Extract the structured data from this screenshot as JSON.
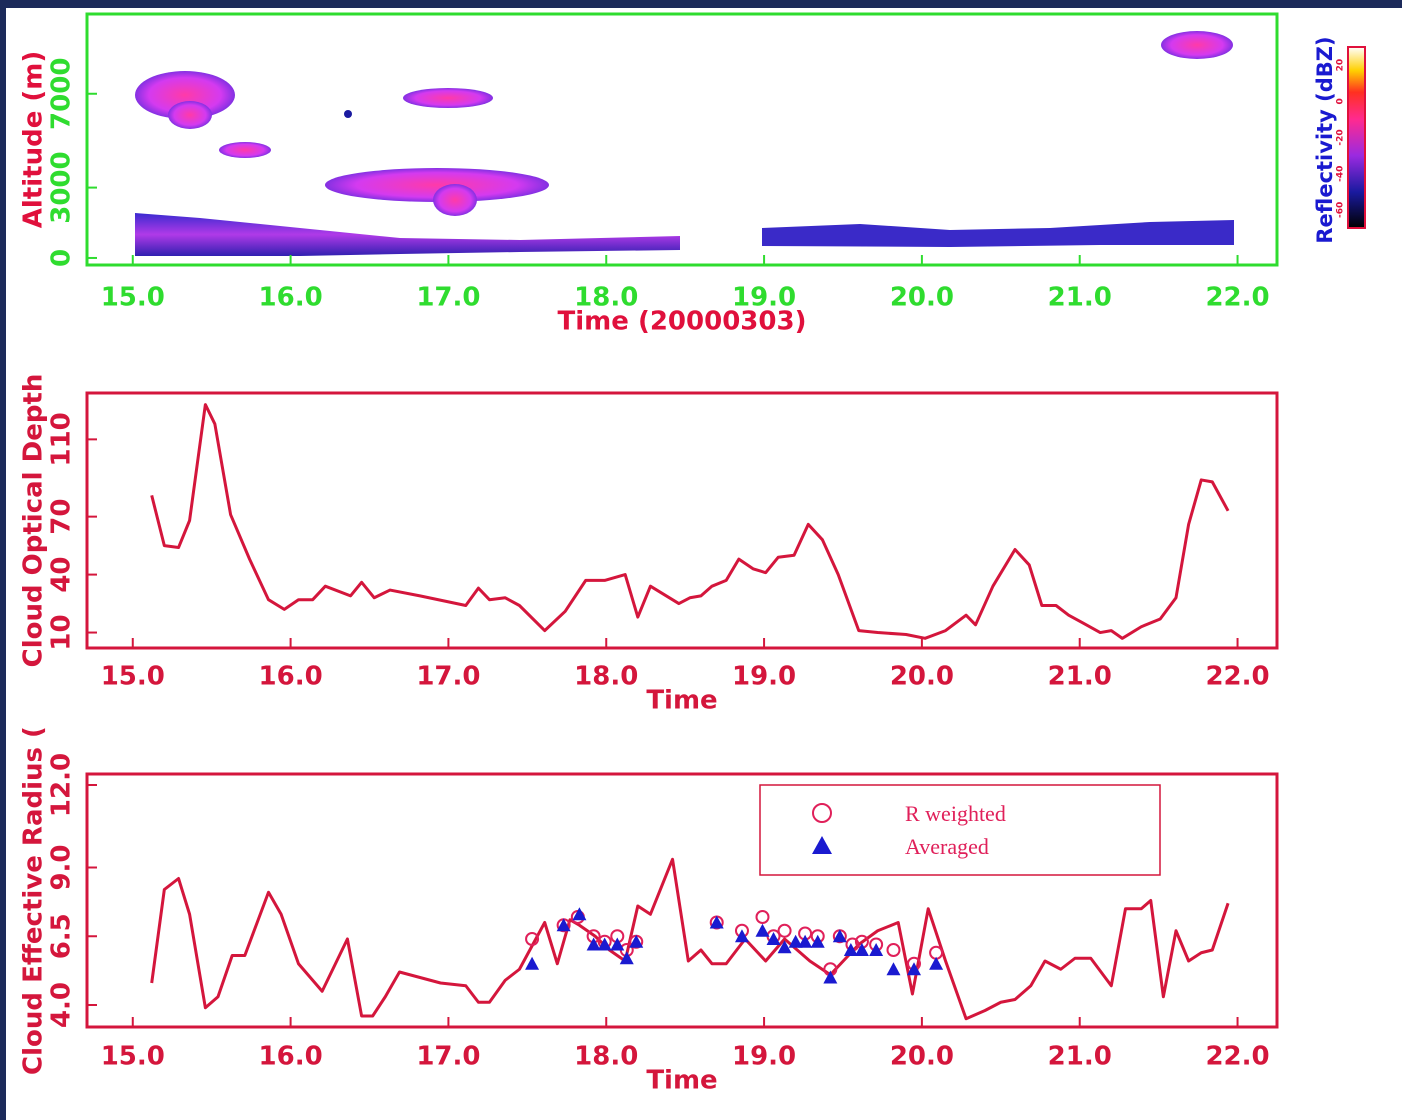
{
  "chart_data": [
    {
      "type": "heatmap",
      "xlabel": "Time (20000303)",
      "ylabel": "Altitude (m)",
      "xlim": [
        14.71,
        22.25
      ],
      "xticks": [
        {
          "value": 15,
          "label": "15.0"
        },
        {
          "value": 16,
          "label": "16.0"
        },
        {
          "value": 17,
          "label": "17.0"
        },
        {
          "value": 18,
          "label": "18.0"
        },
        {
          "value": 19,
          "label": "19.0"
        },
        {
          "value": 20,
          "label": "20.0"
        },
        {
          "value": 21,
          "label": "21.0"
        },
        {
          "value": 22,
          "label": "22.0"
        }
      ],
      "ylim": [
        -300,
        10400
      ],
      "yticks": [
        0,
        3000,
        7000
      ],
      "axis_color": "#2fdc2f",
      "tick_color": "#2fdc2f",
      "label_color": "#e0103c",
      "colorbar": {
        "label": "Reflectivity (dBZ)",
        "lim": [
          -70,
          30
        ],
        "ticks": [
          -60,
          -40,
          -20,
          0,
          20
        ]
      }
    },
    {
      "type": "line",
      "xlabel": "Time",
      "ylabel": "Cloud Optical Depth",
      "xlim": [
        14.71,
        22.25
      ],
      "xticks": [
        {
          "value": 15,
          "label": "15.0"
        },
        {
          "value": 16,
          "label": "16.0"
        },
        {
          "value": 17,
          "label": "17.0"
        },
        {
          "value": 18,
          "label": "18.0"
        },
        {
          "value": 19,
          "label": "19.0"
        },
        {
          "value": 20,
          "label": "20.0"
        },
        {
          "value": 21,
          "label": "21.0"
        },
        {
          "value": 22,
          "label": "22.0"
        }
      ],
      "ylim": [
        2,
        134
      ],
      "yticks": [
        10,
        40,
        70,
        110
      ],
      "axis_color": "#d4163c",
      "tick_color": "#d4163c",
      "label_color": "#d4163c",
      "series": [
        {
          "color": "#d4163c",
          "x": [
            15.12,
            15.2,
            15.29,
            15.36,
            15.46,
            15.52,
            15.62,
            15.74,
            15.86,
            15.96,
            16.05,
            16.14,
            16.22,
            16.38,
            16.45,
            16.53,
            16.63,
            16.82,
            17.11,
            17.19,
            17.26,
            17.36,
            17.45,
            17.61,
            17.74,
            17.87,
            17.99,
            18.12,
            18.2,
            18.28,
            18.46,
            18.53,
            18.6,
            18.67,
            18.76,
            18.84,
            18.93,
            19.01,
            19.09,
            19.19,
            19.28,
            19.37,
            19.47,
            19.6,
            19.72,
            19.9,
            20.02,
            20.15,
            20.28,
            20.34,
            20.45,
            20.59,
            20.68,
            20.76,
            20.85,
            20.93,
            21.02,
            21.13,
            21.2,
            21.27,
            21.39,
            21.51,
            21.61,
            21.69,
            21.77,
            21.84,
            21.94
          ],
          "values": [
            81,
            55,
            54,
            68,
            128,
            118,
            71,
            48,
            27,
            22,
            27,
            27,
            34,
            29,
            36,
            28,
            32,
            29,
            24,
            33,
            27,
            28,
            24,
            11,
            21,
            37,
            37,
            40,
            18,
            34,
            25,
            28,
            29,
            34,
            37,
            48,
            43,
            41,
            49,
            50,
            66,
            58,
            40,
            11,
            10,
            9,
            7,
            11,
            19,
            14,
            34,
            53,
            45,
            24,
            24,
            19,
            15,
            10,
            11,
            7,
            13,
            17,
            28,
            66,
            89,
            88,
            73
          ]
        }
      ]
    },
    {
      "type": "line",
      "xlabel": "Time",
      "ylabel": "Cloud Effective Radius (",
      "xlim": [
        14.71,
        22.25
      ],
      "xticks": [
        {
          "value": 15,
          "label": "15.0"
        },
        {
          "value": 16,
          "label": "16.0"
        },
        {
          "value": 17,
          "label": "17.0"
        },
        {
          "value": 18,
          "label": "18.0"
        },
        {
          "value": 19,
          "label": "19.0"
        },
        {
          "value": 20,
          "label": "20.0"
        },
        {
          "value": 21,
          "label": "21.0"
        },
        {
          "value": 22,
          "label": "22.0"
        }
      ],
      "ylim": [
        3.2,
        12.4
      ],
      "yticks": [
        {
          "value": 4,
          "label": "4.0"
        },
        6.5,
        {
          "value": 9,
          "label": "9.0"
        },
        {
          "value": 12,
          "label": "12.0"
        }
      ],
      "axis_color": "#d4163c",
      "tick_color": "#d4163c",
      "label_color": "#d4163c",
      "legend": "upper right",
      "series": [
        {
          "color": "#d4163c",
          "x": [
            15.12,
            15.2,
            15.29,
            15.36,
            15.46,
            15.54,
            15.63,
            15.71,
            15.86,
            15.94,
            16.05,
            16.2,
            16.36,
            16.45,
            16.52,
            16.6,
            16.69,
            16.95,
            17.11,
            17.19,
            17.26,
            17.36,
            17.45,
            17.61,
            17.69,
            17.77,
            17.83,
            17.93,
            18.02,
            18.12,
            18.2,
            18.28,
            18.42,
            18.52,
            18.6,
            18.67,
            18.76,
            18.88,
            19.01,
            19.13,
            19.29,
            19.42,
            19.6,
            19.72,
            19.85,
            19.94,
            20.04,
            20.15,
            20.28,
            20.4,
            20.5,
            20.59,
            20.69,
            20.78,
            20.88,
            20.97,
            21.07,
            21.2,
            21.29,
            21.39,
            21.45,
            21.53,
            21.61,
            21.69,
            21.77,
            21.84,
            21.94
          ],
          "values": [
            4.8,
            8.2,
            8.6,
            7.3,
            3.9,
            4.3,
            5.8,
            5.8,
            8.1,
            7.3,
            5.5,
            4.5,
            6.4,
            3.6,
            3.6,
            4.3,
            5.2,
            4.8,
            4.7,
            4.1,
            4.1,
            4.9,
            5.3,
            7.0,
            5.5,
            7.1,
            6.9,
            6.5,
            6.0,
            5.6,
            7.6,
            7.3,
            9.3,
            5.6,
            6.0,
            5.5,
            5.5,
            6.4,
            5.6,
            6.4,
            5.6,
            5.1,
            6.2,
            6.7,
            7.0,
            4.4,
            7.5,
            5.6,
            3.5,
            3.8,
            4.1,
            4.2,
            4.7,
            5.6,
            5.3,
            5.7,
            5.7,
            4.7,
            7.5,
            7.5,
            7.8,
            4.3,
            6.7,
            5.6,
            5.9,
            6.0,
            7.7
          ]
        },
        {
          "name": "R weighted",
          "marker": "circle",
          "color": "#e0205a",
          "x": [
            17.53,
            17.73,
            17.82,
            17.92,
            17.99,
            18.07,
            18.13,
            18.19,
            18.7,
            18.86,
            18.99,
            19.06,
            19.13,
            19.26,
            19.34,
            19.42,
            19.48,
            19.56,
            19.62,
            19.71,
            19.82,
            19.95,
            20.09
          ],
          "values": [
            6.4,
            6.9,
            7.2,
            6.5,
            6.3,
            6.5,
            6.0,
            6.3,
            7.0,
            6.7,
            7.2,
            6.5,
            6.7,
            6.6,
            6.5,
            5.3,
            6.5,
            6.2,
            6.3,
            6.2,
            6.0,
            5.5,
            5.9
          ]
        },
        {
          "name": "Averaged",
          "marker": "triangle",
          "color": "#1a1ad0",
          "x": [
            17.53,
            17.73,
            17.83,
            17.92,
            17.99,
            18.07,
            18.13,
            18.19,
            18.7,
            18.86,
            18.99,
            19.06,
            19.13,
            19.2,
            19.26,
            19.34,
            19.42,
            19.48,
            19.55,
            19.62,
            19.71,
            19.82,
            19.95,
            20.09
          ],
          "values": [
            5.5,
            6.9,
            7.3,
            6.2,
            6.2,
            6.2,
            5.7,
            6.3,
            7.0,
            6.5,
            6.7,
            6.4,
            6.1,
            6.3,
            6.3,
            6.3,
            5.0,
            6.5,
            6.0,
            6.0,
            6.0,
            5.3,
            5.3,
            5.5
          ]
        }
      ]
    }
  ]
}
